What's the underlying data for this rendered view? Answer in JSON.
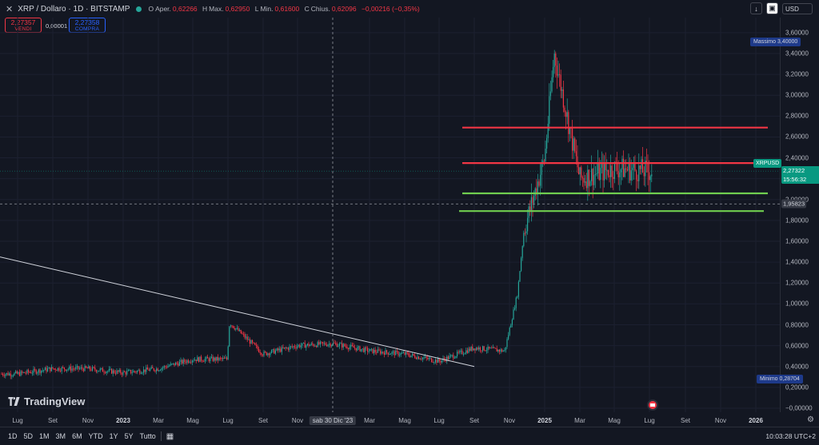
{
  "header": {
    "symbol": "XRP / Dollaro · 1D · BITSTAMP",
    "ohlc": [
      {
        "label": "O",
        "text": "Aper.",
        "value": "0,62266"
      },
      {
        "label": "H",
        "text": "Max.",
        "value": "0,62950"
      },
      {
        "label": "L",
        "text": "Min.",
        "value": "0,61600"
      },
      {
        "label": "C",
        "text": "Chius.",
        "value": "0,62096"
      }
    ],
    "change": "−0,00216 (−0,35%)",
    "currency": "USD"
  },
  "trade": {
    "sell_price": "2,27357",
    "sell_label": "VENDI",
    "spread": "0,00001",
    "buy_price": "2,27358",
    "buy_label": "COMPRA"
  },
  "price_axis": {
    "ticks": [
      "3,60000",
      "3,40000",
      "3,20000",
      "3,00000",
      "2,80000",
      "2,60000",
      "2,40000",
      "2,20000",
      "2,00000",
      "1,80000",
      "1,60000",
      "1,40000",
      "1,20000",
      "1,00000",
      "0,80000",
      "0,60000",
      "0,40000",
      "0,20000",
      "−0,00000"
    ],
    "crosshair_price": "1,95823",
    "current_symbol": "XRPUSD",
    "current_price": "2,27322",
    "countdown": "15:56:32",
    "max_label": "Massimo",
    "max_value": "3,40000",
    "min_label": "Minimo",
    "min_value": "0,28704"
  },
  "time_axis": {
    "ticks": [
      "Lug",
      "Set",
      "Nov",
      "2023",
      "Mar",
      "Mag",
      "Lug",
      "Set",
      "Nov",
      "Mar",
      "Mag",
      "Lug",
      "Set",
      "Nov",
      "2025",
      "Mar",
      "Mag",
      "Lug",
      "Set",
      "Nov",
      "2026"
    ],
    "cursor_date": "sab 30 Dic '23"
  },
  "bottom": {
    "ranges": [
      "1D",
      "5D",
      "1M",
      "3M",
      "6M",
      "YTD",
      "1Y",
      "5Y",
      "Tutto"
    ],
    "time": "10:03:28 UTC+2"
  },
  "branding": "TradingView",
  "colors": {
    "background": "#131722",
    "up": "#26a69a",
    "down": "#f23645",
    "resistance": "#f23645",
    "support": "#70ce4f",
    "trendline": "#d1d4dc"
  },
  "chart_data": {
    "type": "candlestick",
    "symbol": "XRP / Dollaro",
    "interval": "1D",
    "ylim": [
      0,
      3.6
    ],
    "price_path": [
      {
        "x": "Lug 2022",
        "y": 0.33
      },
      {
        "x": "Set 2022",
        "y": 0.38
      },
      {
        "x": "Nov 2022",
        "y": 0.38
      },
      {
        "x": "2023",
        "y": 0.34
      },
      {
        "x": "Mar 2023",
        "y": 0.38
      },
      {
        "x": "Mag 2023",
        "y": 0.47
      },
      {
        "x": "Lug 2023",
        "y": 0.47
      },
      {
        "x": "Lug 2023",
        "y": 0.82
      },
      {
        "x": "Set 2023",
        "y": 0.52
      },
      {
        "x": "Nov 2023",
        "y": 0.6
      },
      {
        "x": "sab 30 Dic '23",
        "y": 0.62
      },
      {
        "x": "Mar 2024",
        "y": 0.55
      },
      {
        "x": "Mag 2024",
        "y": 0.52
      },
      {
        "x": "Lug 2024",
        "y": 0.45
      },
      {
        "x": "Set 2024",
        "y": 0.58
      },
      {
        "x": "Nov 2024",
        "y": 0.55
      },
      {
        "x": "Nov 2024",
        "y": 1.1
      },
      {
        "x": "Nov 2024",
        "y": 1.7
      },
      {
        "x": "2025",
        "y": 2.4
      },
      {
        "x": "2025",
        "y": 3.4
      },
      {
        "x": "Mar 2025",
        "y": 2.2
      },
      {
        "x": "Mag 2025",
        "y": 2.3
      },
      {
        "x": "Lug 2025",
        "y": 2.27
      }
    ],
    "levels": [
      {
        "type": "resistance",
        "value": 2.69
      },
      {
        "type": "resistance",
        "value": 2.35
      },
      {
        "type": "support",
        "value": 2.06
      },
      {
        "type": "support",
        "value": 1.89
      }
    ],
    "trendline": [
      {
        "x": "Lug 2022",
        "y": 1.45
      },
      {
        "x": "Set 2024",
        "y": 0.4
      }
    ],
    "crosshair": {
      "x": "sab 30 Dic '23",
      "y": 1.95823
    },
    "last": 2.27322
  }
}
